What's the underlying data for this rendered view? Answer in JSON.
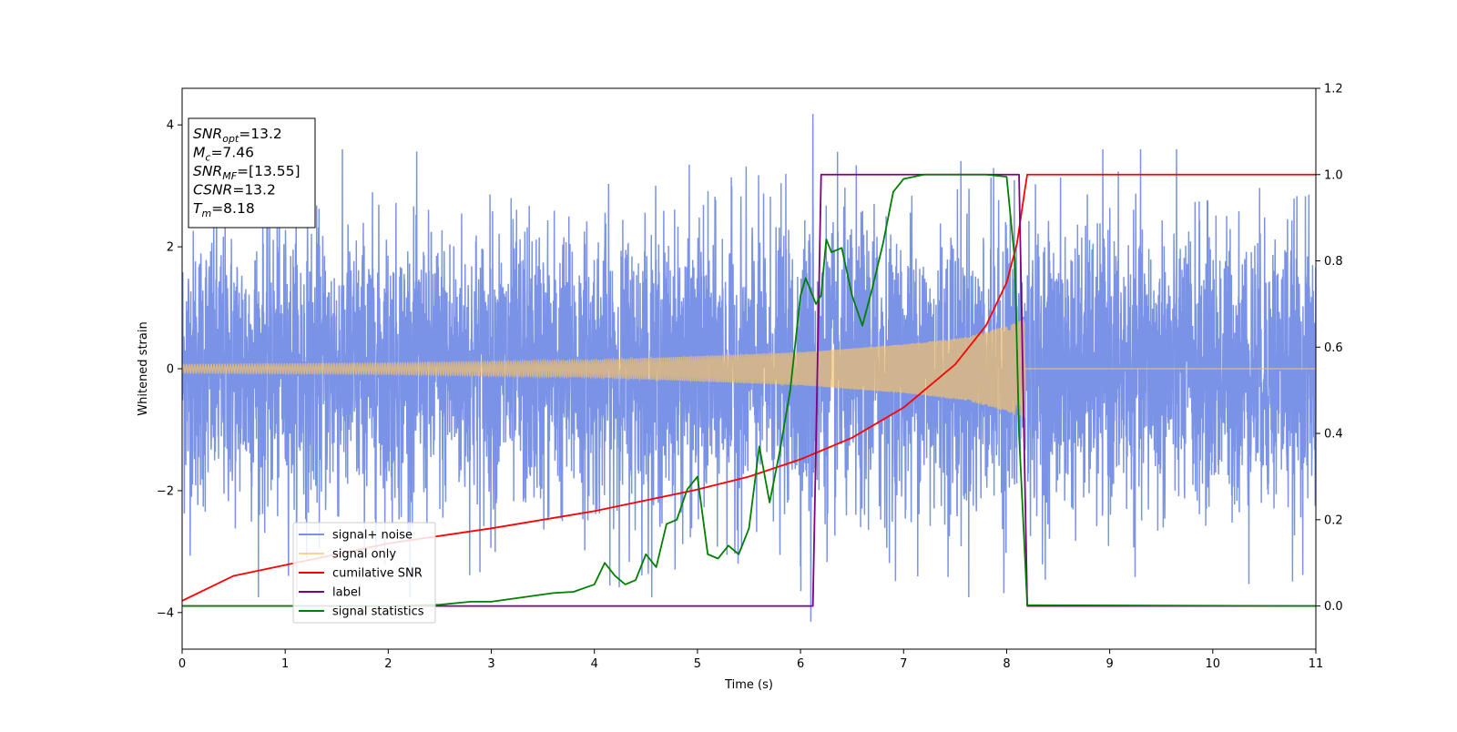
{
  "chart_data": {
    "type": "line",
    "xlabel": "Time (s)",
    "ylabel_left": "Whitened strain",
    "ylabel_right": "",
    "xlim": [
      0,
      11
    ],
    "ylim_left": [
      -4.6,
      4.6
    ],
    "ylim_right": [
      -0.1,
      1.2
    ],
    "x_ticks": [
      "0",
      "1",
      "2",
      "3",
      "4",
      "5",
      "6",
      "7",
      "8",
      "9",
      "10",
      "11"
    ],
    "x_tick_values": [
      0,
      1,
      2,
      3,
      4,
      5,
      6,
      7,
      8,
      9,
      10,
      11
    ],
    "y_left_ticks": [
      "4",
      "2",
      "0",
      "−2",
      "−4"
    ],
    "y_left_tick_values": [
      4,
      2,
      0,
      -2,
      -4
    ],
    "y_right_ticks": [
      "1.2",
      "1.0",
      "0.8",
      "0.6",
      "0.4",
      "0.2",
      "0.0"
    ],
    "y_right_tick_values": [
      1.2,
      1.0,
      0.8,
      0.6,
      0.4,
      0.2,
      0.0
    ],
    "grid": false,
    "legend_placement": "lower-left",
    "annotation": {
      "lines": [
        {
          "base": "SNR",
          "sub": "opt",
          "suffix": "=13.2"
        },
        {
          "base": "M",
          "sub": "c",
          "suffix": "=7.46"
        },
        {
          "base": "SNR",
          "sub": "MF",
          "suffix": "=[13.55]"
        },
        {
          "base": "CSNR",
          "sub": "",
          "suffix": "=13.2"
        },
        {
          "base": "T",
          "sub": "m",
          "suffix": "=8.18"
        }
      ]
    },
    "series": [
      {
        "name": "signal+ noise",
        "axis": "left",
        "color": "#7b93e6",
        "kind": "noise",
        "noise_std": 1.15,
        "x_range": [
          0,
          11
        ],
        "notable_extremes": [
          {
            "x": 6.12,
            "y": 4.18
          },
          {
            "x": 6.1,
            "y": -4.15
          }
        ]
      },
      {
        "name": "signal only",
        "axis": "left",
        "color": "#f5c26b",
        "kind": "chirp",
        "x_range": [
          0,
          8.18
        ],
        "envelope": [
          [
            0,
            0.07
          ],
          [
            2,
            0.09
          ],
          [
            4,
            0.14
          ],
          [
            6,
            0.27
          ],
          [
            7,
            0.4
          ],
          [
            7.6,
            0.52
          ],
          [
            8.0,
            0.7
          ],
          [
            8.18,
            0.82
          ]
        ],
        "after_merger_value": 0
      },
      {
        "name": "cumilative SNR",
        "axis": "right",
        "color": "#ff0000",
        "x": [
          0,
          0.5,
          1,
          2,
          3,
          4,
          5,
          5.5,
          6,
          6.5,
          7,
          7.5,
          7.8,
          8.0,
          8.1,
          8.18,
          8.2,
          11
        ],
        "y": [
          0.012,
          0.07,
          0.095,
          0.145,
          0.18,
          0.22,
          0.27,
          0.3,
          0.34,
          0.39,
          0.46,
          0.56,
          0.65,
          0.75,
          0.84,
          0.97,
          1.0,
          1.0
        ]
      },
      {
        "name": "label",
        "axis": "right",
        "color": "#800080",
        "x": [
          0,
          6.12,
          6.2,
          8.12,
          8.2,
          11
        ],
        "y": [
          0,
          0,
          1,
          1,
          0,
          0
        ]
      },
      {
        "name": "signal statistics",
        "axis": "right",
        "color": "#008000",
        "x": [
          0,
          1,
          2,
          2.5,
          2.8,
          3.0,
          3.3,
          3.6,
          3.8,
          4.0,
          4.1,
          4.2,
          4.3,
          4.4,
          4.5,
          4.6,
          4.7,
          4.8,
          4.9,
          5.0,
          5.1,
          5.2,
          5.3,
          5.4,
          5.5,
          5.6,
          5.7,
          5.8,
          5.9,
          6.0,
          6.05,
          6.1,
          6.15,
          6.2,
          6.25,
          6.3,
          6.4,
          6.5,
          6.6,
          6.7,
          6.8,
          6.9,
          7.0,
          7.2,
          7.5,
          7.8,
          8.0,
          8.08,
          8.12,
          8.2,
          11
        ],
        "y": [
          0,
          0.0,
          0.0,
          0.003,
          0.01,
          0.01,
          0.02,
          0.03,
          0.033,
          0.05,
          0.1,
          0.07,
          0.05,
          0.06,
          0.12,
          0.09,
          0.19,
          0.2,
          0.27,
          0.3,
          0.12,
          0.11,
          0.14,
          0.12,
          0.18,
          0.37,
          0.24,
          0.36,
          0.5,
          0.72,
          0.76,
          0.73,
          0.7,
          0.72,
          0.85,
          0.82,
          0.83,
          0.72,
          0.65,
          0.74,
          0.84,
          0.96,
          0.99,
          1.0,
          1.0,
          1.0,
          0.995,
          0.8,
          0.4,
          0.002,
          0.0
        ]
      }
    ]
  }
}
